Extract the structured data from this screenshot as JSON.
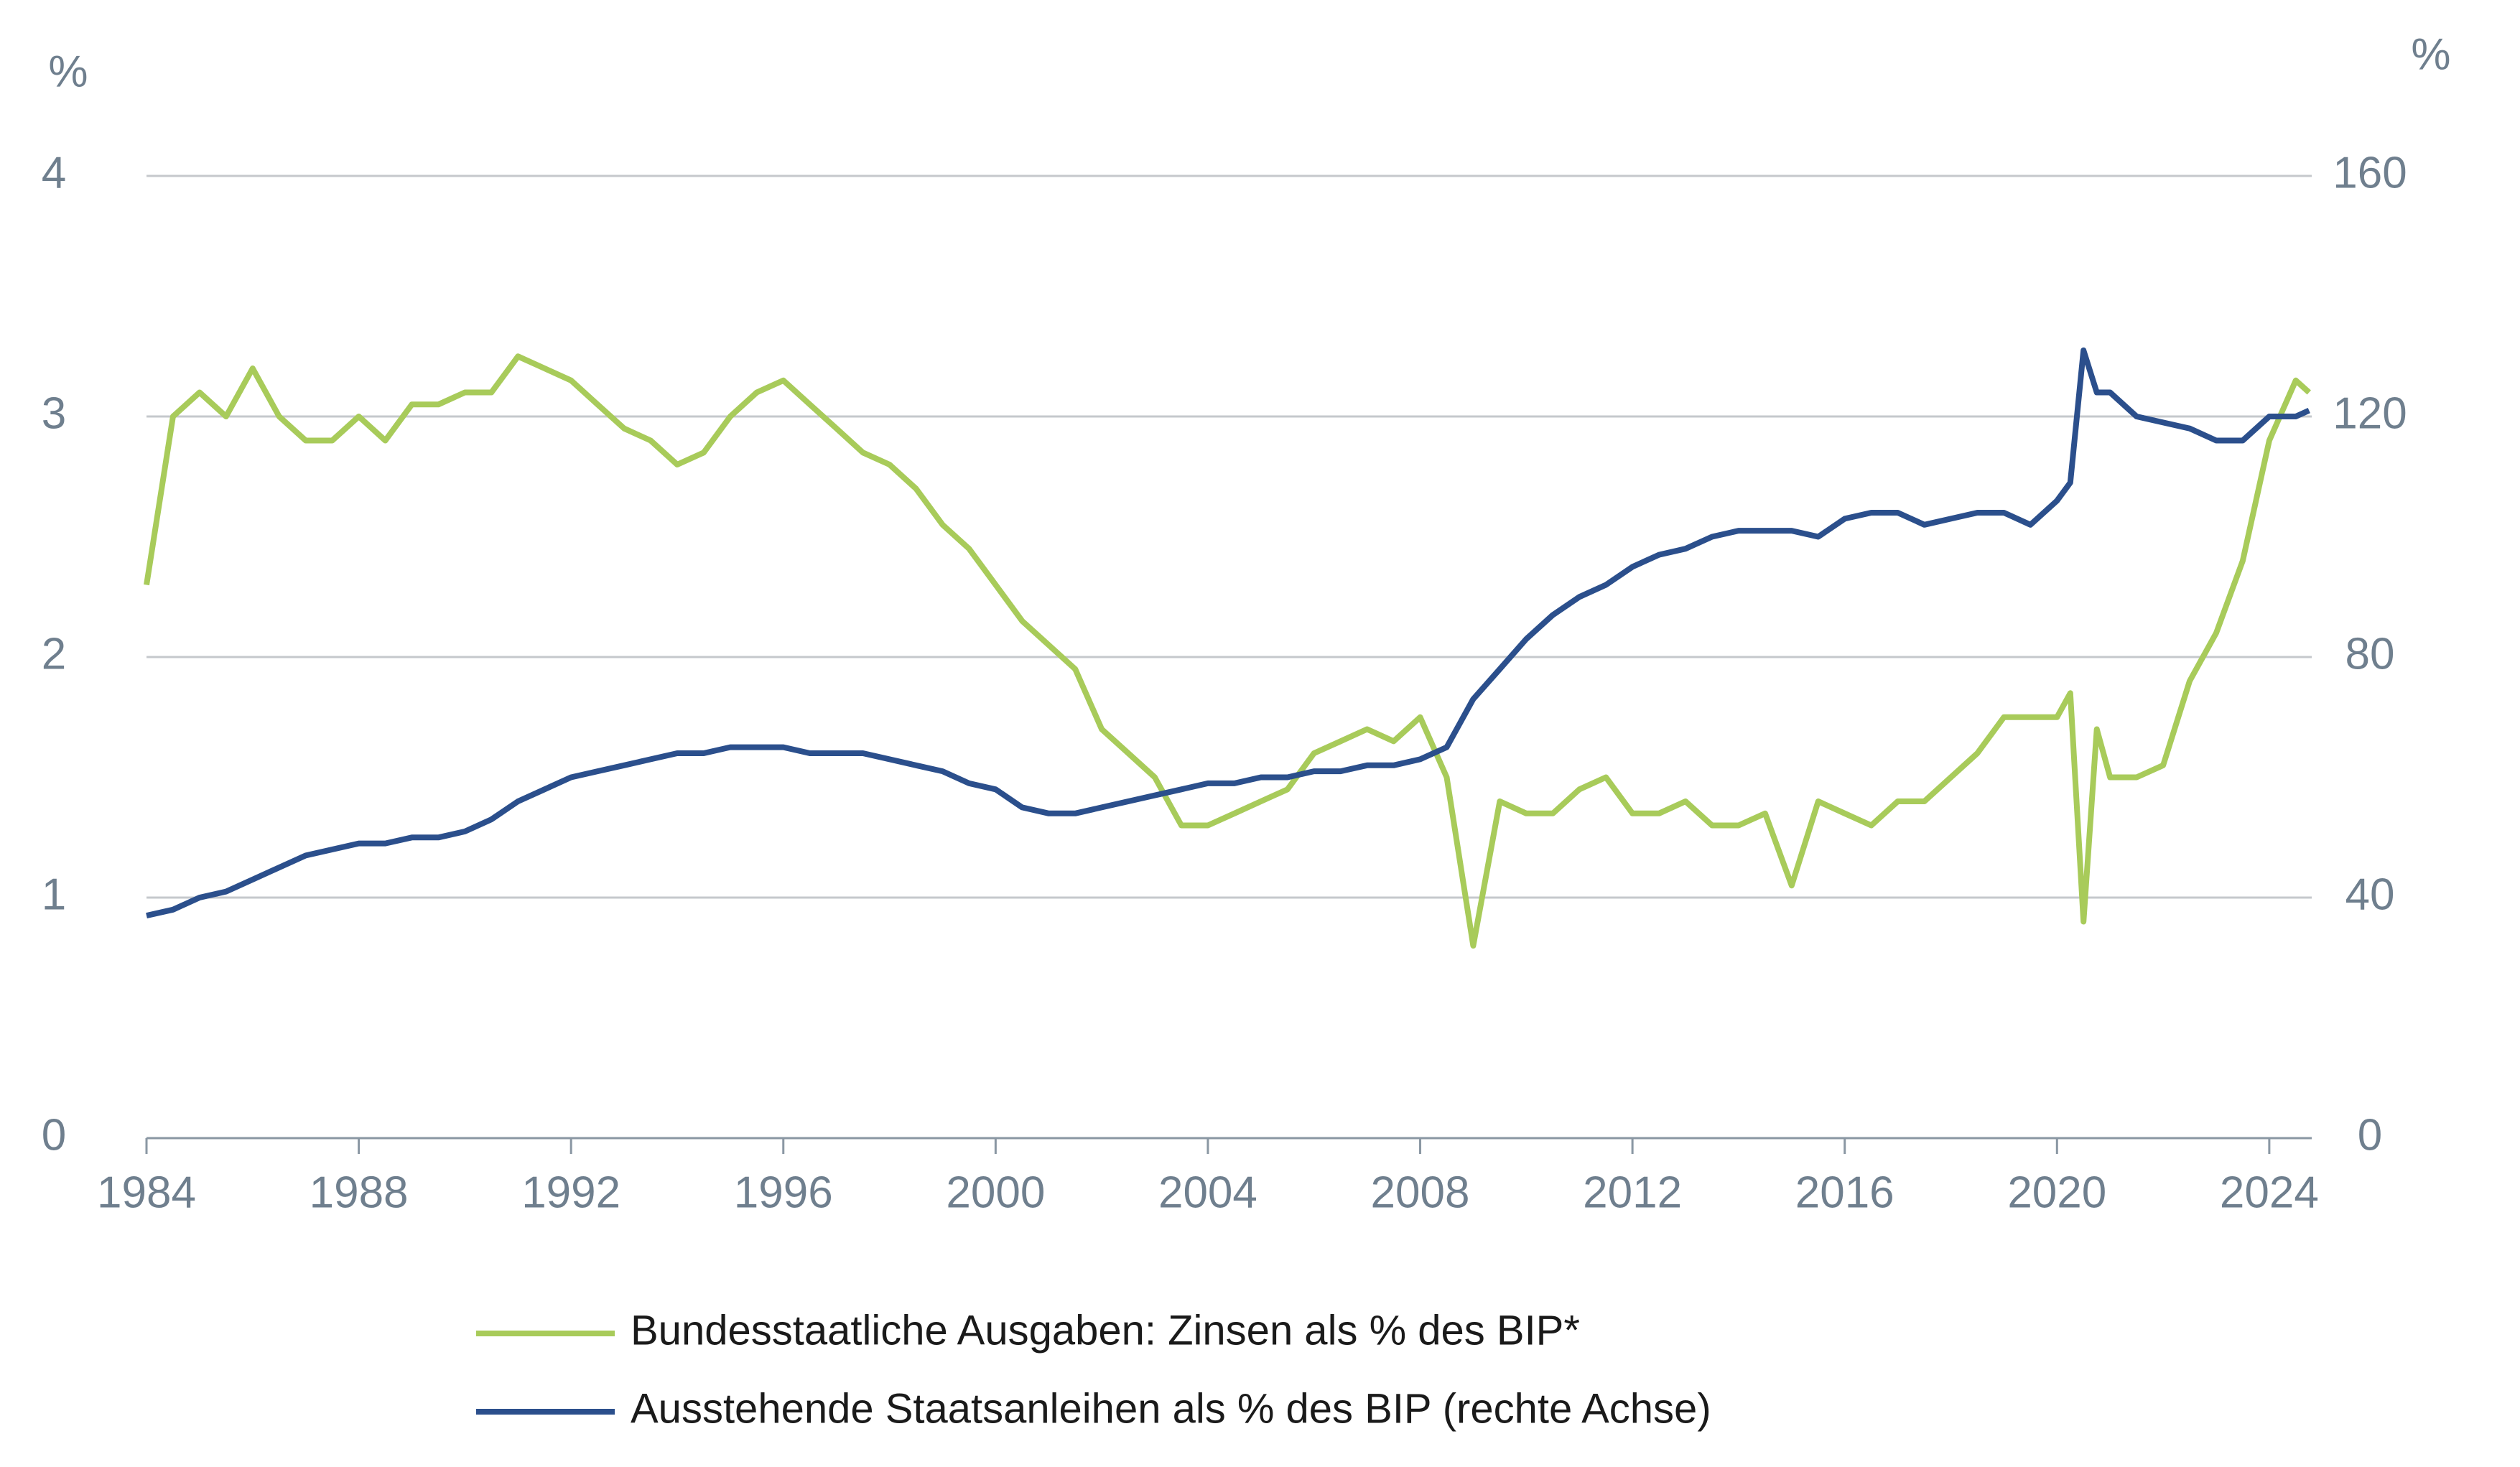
{
  "chart_data": {
    "type": "line",
    "y_unit": "%",
    "y2_unit": "%",
    "x": [
      1984,
      1984.5,
      1985,
      1985.5,
      1986,
      1986.5,
      1987,
      1987.5,
      1988,
      1988.5,
      1989,
      1989.5,
      1990,
      1990.5,
      1991,
      1991.5,
      1992,
      1992.5,
      1993,
      1993.5,
      1994,
      1994.5,
      1995,
      1995.5,
      1996,
      1996.5,
      1997,
      1997.5,
      1998,
      1998.5,
      1999,
      1999.5,
      2000,
      2000.5,
      2001,
      2001.5,
      2002,
      2002.5,
      2003,
      2003.5,
      2004,
      2004.5,
      2005,
      2005.5,
      2006,
      2006.5,
      2007,
      2007.5,
      2008,
      2008.5,
      2009,
      2009.5,
      2010,
      2010.5,
      2011,
      2011.5,
      2012,
      2012.5,
      2013,
      2013.5,
      2014,
      2014.5,
      2015,
      2015.5,
      2016,
      2016.5,
      2017,
      2017.5,
      2018,
      2018.5,
      2019,
      2019.5,
      2020,
      2020.25,
      2020.5,
      2020.75,
      2021,
      2021.5,
      2022,
      2022.5,
      2023,
      2023.5,
      2024,
      2024.5,
      2024.75
    ],
    "series": [
      {
        "name": "Bundesstaatliche Ausgaben: Zinsen als % des BIP*",
        "color": "#a8cb5a",
        "values": [
          2.3,
          3.0,
          3.1,
          3.0,
          3.2,
          3.0,
          2.9,
          2.9,
          3.0,
          2.9,
          3.05,
          3.05,
          3.1,
          3.1,
          3.25,
          3.2,
          3.15,
          3.05,
          2.95,
          2.9,
          2.8,
          2.85,
          3.0,
          3.1,
          3.15,
          3.05,
          2.95,
          2.85,
          2.8,
          2.7,
          2.55,
          2.45,
          2.3,
          2.15,
          2.05,
          1.95,
          1.7,
          1.6,
          1.5,
          1.3,
          1.3,
          1.35,
          1.4,
          1.45,
          1.6,
          1.65,
          1.7,
          1.65,
          1.75,
          1.5,
          0.8,
          1.4,
          1.35,
          1.35,
          1.45,
          1.5,
          1.35,
          1.35,
          1.4,
          1.3,
          1.3,
          1.35,
          1.05,
          1.4,
          1.35,
          1.3,
          1.4,
          1.4,
          1.5,
          1.6,
          1.75,
          1.75,
          1.75,
          1.85,
          0.9,
          1.7,
          1.5,
          1.5,
          1.55,
          1.9,
          2.1,
          2.4,
          2.9,
          3.15,
          3.1
        ]
      },
      {
        "name": "Ausstehende Staatsanleihen als % des BIP (rechte Achse)",
        "color": "#2b4f8c",
        "axis": "y2",
        "values": [
          37,
          38,
          40,
          41,
          43,
          45,
          47,
          48,
          49,
          49,
          50,
          50,
          51,
          53,
          56,
          58,
          60,
          61,
          62,
          63,
          64,
          64,
          65,
          65,
          65,
          64,
          64,
          64,
          63,
          62,
          61,
          59,
          58,
          55,
          54,
          54,
          55,
          56,
          57,
          58,
          59,
          59,
          60,
          60,
          61,
          61,
          62,
          62,
          63,
          65,
          73,
          78,
          83,
          87,
          90,
          92,
          95,
          97,
          98,
          100,
          101,
          101,
          101,
          100,
          103,
          104,
          104,
          102,
          103,
          104,
          104,
          102,
          106,
          109,
          131,
          124,
          124,
          120,
          119,
          118,
          116,
          116,
          120,
          120,
          121
        ]
      }
    ],
    "xlim": [
      1984,
      2024.8
    ],
    "xticks": [
      1984,
      1988,
      1992,
      1996,
      2000,
      2004,
      2008,
      2012,
      2016,
      2020,
      2024
    ],
    "ylim": [
      0,
      4
    ],
    "yticks": [
      0,
      1,
      2,
      3,
      4
    ],
    "y2lim": [
      0,
      160
    ],
    "y2ticks": [
      0,
      40,
      80,
      120,
      160
    ],
    "grid": true,
    "legend": "bottom"
  }
}
